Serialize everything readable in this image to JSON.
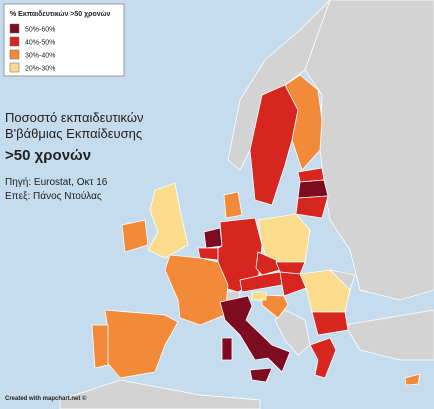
{
  "legend": {
    "title": "% Εκπαιδευτικών >50 χρονών",
    "items": [
      {
        "label": "50%-60%",
        "color": "#7d0c20"
      },
      {
        "label": "40%-50%",
        "color": "#d7251f"
      },
      {
        "label": "30%-40%",
        "color": "#f28a3a"
      },
      {
        "label": "20%-30%",
        "color": "#fbdc8c"
      }
    ]
  },
  "title": {
    "line1": "Ποσοστό εκπαιδευτικών",
    "line2": "Β'βάθμιας Εκπαίδευσης",
    "line3": ">50 χρονών"
  },
  "source": "Πηγή: Eurostat, Οκτ 16",
  "author": "Επεξ: Πάνος Ντούλας",
  "credit": "Created with mapchart.net ©"
}
